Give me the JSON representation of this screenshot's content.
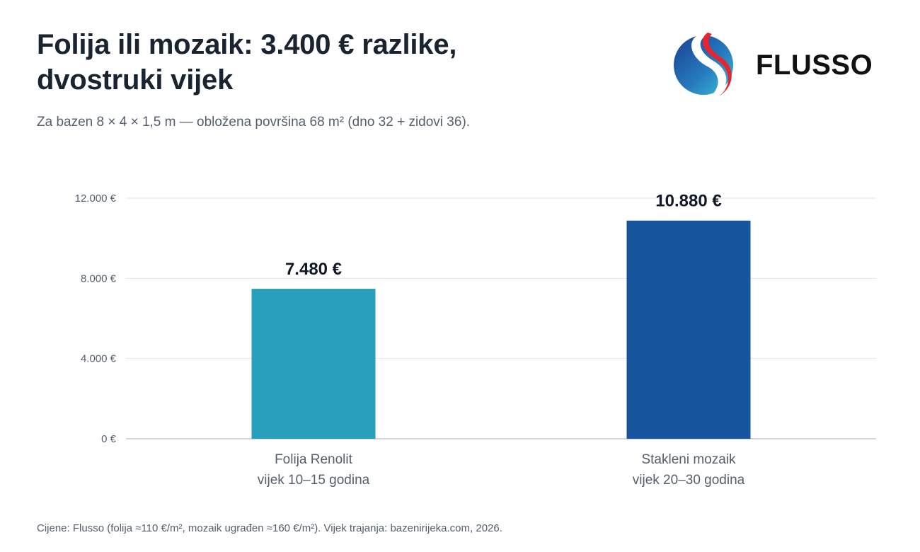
{
  "header": {
    "title_line1": "Folija ili mozaik: 3.400 € razlike,",
    "title_line2": "dvostruki vijek",
    "subtitle": "Za bazen 8 × 4 × 1,5 m — obložena površina 68 m² (dno 32 + zidovi 36)."
  },
  "logo": {
    "text": "FLUSSO",
    "icon": "flusso-swirl-logo-icon"
  },
  "chart_data": {
    "type": "bar",
    "title": "Folija ili mozaik: 3.400 € razlike, dvostruki vijek",
    "subtitle": "Za bazen 8 × 4 × 1,5 m — obložena površina 68 m² (dno 32 + zidovi 36).",
    "xlabel": "",
    "ylabel": "",
    "ylim": [
      0,
      12000
    ],
    "yticks": [
      0,
      4000,
      8000,
      12000
    ],
    "ytick_labels": [
      "0 €",
      "4.000 €",
      "8.000 €",
      "12.000 €"
    ],
    "grid": true,
    "legend": "none",
    "categories": [
      {
        "line1": "Folija Renolit",
        "line2": "vijek 10–15 godina"
      },
      {
        "line1": "Stakleni mozaik",
        "line2": "vijek 20–30 godina"
      }
    ],
    "values": [
      7480,
      10880
    ],
    "value_labels": [
      "7.480 €",
      "10.880 €"
    ],
    "colors": [
      "#29a0bb",
      "#17559e"
    ]
  },
  "footnote": "Cijene: Flusso (folija ≈110 €/m², mozaik ugrađen ≈160 €/m²). Vijek trajanja: bazenirijeka.com, 2026."
}
